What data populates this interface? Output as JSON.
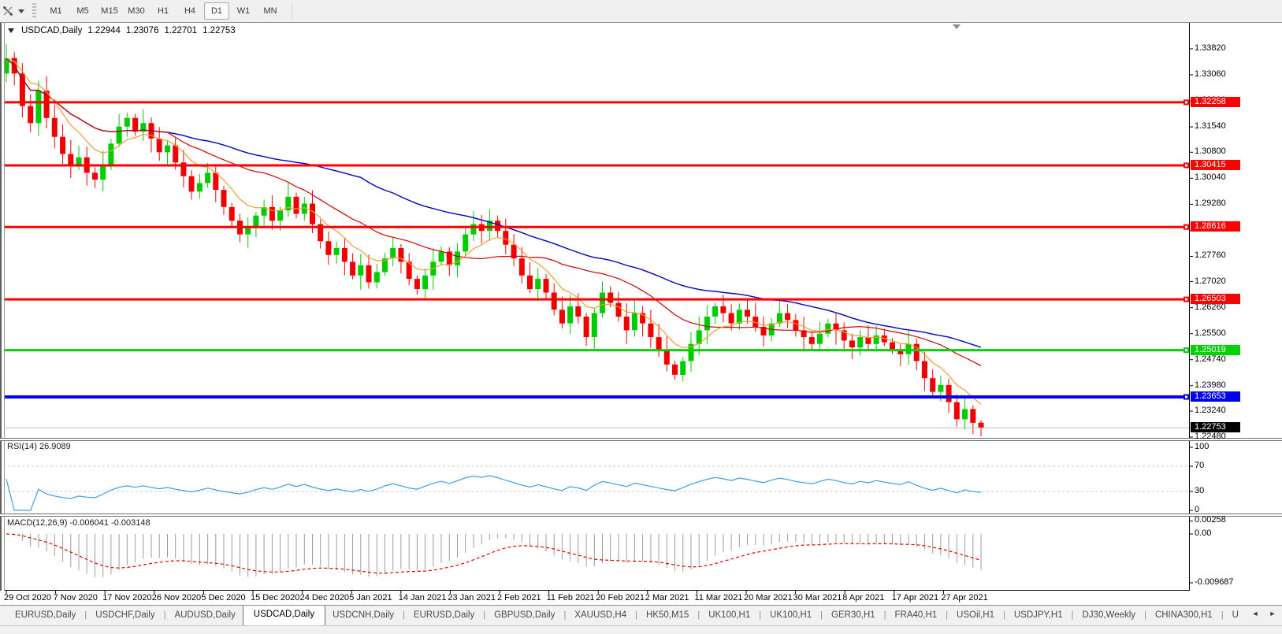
{
  "toolbar": {
    "tool_icon": "crosshair-cursor-icon",
    "timeframes": [
      {
        "label": "M1",
        "active": false
      },
      {
        "label": "M5",
        "active": false
      },
      {
        "label": "M15",
        "active": false
      },
      {
        "label": "M30",
        "active": false
      },
      {
        "label": "H1",
        "active": false
      },
      {
        "label": "H4",
        "active": false
      },
      {
        "label": "D1",
        "active": true
      },
      {
        "label": "W1",
        "active": false
      },
      {
        "label": "MN",
        "active": false
      }
    ]
  },
  "chart": {
    "title_symbol": "USDCAD,Daily",
    "quote_open": "1.22944",
    "quote_high": "1.23076",
    "quote_low": "1.22701",
    "quote_close": "1.22753",
    "candle_up_color": "#00cc00",
    "candle_down_color": "#f20000",
    "ma_colors": {
      "slow": "#0000c8",
      "medium": "#d40000",
      "fast": "#f0a030"
    },
    "price_axis": {
      "ticks": [
        "1.33820",
        "1.33060",
        "1.32300",
        "1.31540",
        "1.30800",
        "1.30040",
        "1.29280",
        "1.28520",
        "1.27760",
        "1.27020",
        "1.26260",
        "1.25500",
        "1.24740",
        "1.23980",
        "1.23240",
        "1.22480"
      ],
      "current_price": "1.22753",
      "current_price_bg": "#000000"
    },
    "levels": [
      {
        "price": "1.32258",
        "color": "#ff0000",
        "width": 3
      },
      {
        "price": "1.30415",
        "color": "#ff0000",
        "width": 3
      },
      {
        "price": "1.28616",
        "color": "#ff0000",
        "width": 3
      },
      {
        "price": "1.26503",
        "color": "#ff0000",
        "width": 3
      },
      {
        "price": "1.25019",
        "color": "#00d400",
        "width": 3
      },
      {
        "price": "1.23653",
        "color": "#0000f0",
        "width": 4
      }
    ]
  },
  "rsi": {
    "label": "RSI(14) 26.9089",
    "name": "RSI",
    "period": "14",
    "value": "26.9089",
    "axis": [
      "100",
      "70",
      "30",
      "0"
    ],
    "upper_level": 70,
    "lower_level": 30,
    "line_color": "#3e9ee8"
  },
  "macd": {
    "label": "MACD(12,26,9) -0.006041 -0.003148",
    "main_value": "-0.006041",
    "signal_value": "-0.003148",
    "axis": [
      "0.00258",
      "0.00",
      "-0.009687"
    ],
    "histogram_color": "#9c9c9c",
    "signal_color": "#e00000"
  },
  "tabs": {
    "items": [
      "EURUSD,Daily",
      "USDCHF,Daily",
      "AUDUSD,Daily",
      "USDCAD,Daily",
      "USDCNH,Daily",
      "EURUSD,Daily",
      "GBPUSD,Daily",
      "XAUUSD,H4",
      "HK50,M15",
      "UK100,H1",
      "UK100,H1",
      "GER30,H1",
      "FRA40,H1",
      "USOil,H1",
      "USDJPY,H1",
      "DJ30,Weekly",
      "CHINA300,H1",
      "U"
    ],
    "active_index": 3,
    "scroll_left": "◄",
    "scroll_right": "►"
  },
  "chart_data": {
    "type": "candlestick",
    "symbol": "USDCAD",
    "timeframe": "Daily",
    "title": "USDCAD,Daily",
    "ohlc_display": {
      "open": 1.22944,
      "high": 1.23076,
      "low": 1.22701,
      "close": 1.22753
    },
    "ylim": [
      1.2248,
      1.3382
    ],
    "x_labels": [
      "29 Oct 2020",
      "7 Nov 2020",
      "17 Nov 2020",
      "26 Nov 2020",
      "5 Dec 2020",
      "15 Dec 2020",
      "24 Dec 2020",
      "5 Jan 2021",
      "14 Jan 2021",
      "23 Jan 2021",
      "2 Feb 2021",
      "11 Feb 2021",
      "20 Feb 2021",
      "2 Mar 2021",
      "11 Mar 2021",
      "20 Mar 2021",
      "30 Mar 2021",
      "8 Apr 2021",
      "17 Apr 2021",
      "27 Apr 2021"
    ],
    "closes": [
      1.3355,
      1.331,
      1.3215,
      1.3165,
      1.326,
      1.318,
      1.3125,
      1.3075,
      1.304,
      1.3065,
      1.302,
      1.3,
      1.3045,
      1.3105,
      1.3155,
      1.318,
      1.314,
      1.3165,
      1.312,
      1.308,
      1.31,
      1.305,
      1.301,
      1.2965,
      1.299,
      1.302,
      1.297,
      1.292,
      1.288,
      1.284,
      1.286,
      1.2895,
      1.292,
      1.288,
      1.291,
      1.295,
      1.29,
      1.293,
      1.287,
      1.282,
      1.278,
      1.28,
      1.276,
      1.272,
      1.275,
      1.27,
      1.273,
      1.277,
      1.28,
      1.276,
      1.271,
      1.268,
      1.272,
      1.276,
      1.279,
      1.275,
      1.279,
      1.284,
      1.287,
      1.285,
      1.288,
      1.285,
      1.281,
      1.277,
      1.272,
      1.268,
      1.271,
      1.267,
      1.262,
      1.258,
      1.263,
      1.26,
      1.254,
      1.261,
      1.267,
      1.264,
      1.26,
      1.256,
      1.261,
      1.258,
      1.254,
      1.25,
      1.246,
      1.243,
      1.247,
      1.252,
      1.256,
      1.26,
      1.263,
      1.261,
      1.258,
      1.262,
      1.26,
      1.257,
      1.2545,
      1.258,
      1.261,
      1.259,
      1.256,
      1.254,
      1.252,
      1.255,
      1.258,
      1.256,
      1.253,
      1.251,
      1.254,
      1.252,
      1.2545,
      1.2525,
      1.2505,
      1.249,
      1.252,
      1.247,
      1.242,
      1.238,
      1.24,
      1.235,
      1.23,
      1.233,
      1.229,
      1.22753
    ],
    "horizontal_levels": [
      {
        "price": 1.32258,
        "color": "red"
      },
      {
        "price": 1.30415,
        "color": "red"
      },
      {
        "price": 1.28616,
        "color": "red"
      },
      {
        "price": 1.26503,
        "color": "red"
      },
      {
        "price": 1.25019,
        "color": "green"
      },
      {
        "price": 1.23653,
        "color": "blue"
      }
    ],
    "indicators": [
      {
        "name": "RSI",
        "period": 14,
        "current": 26.9089,
        "levels": [
          30,
          70
        ],
        "scale": [
          0,
          100
        ]
      },
      {
        "name": "MACD",
        "fast": 12,
        "slow": 26,
        "signal": 9,
        "current_main": -0.006041,
        "current_signal": -0.003148,
        "scale": [
          -0.009687,
          0.00258
        ]
      },
      {
        "name": "MA-slow",
        "color": "#0000c8"
      },
      {
        "name": "MA-medium",
        "color": "#d40000"
      },
      {
        "name": "MA-fast",
        "color": "#f0a030"
      }
    ]
  }
}
